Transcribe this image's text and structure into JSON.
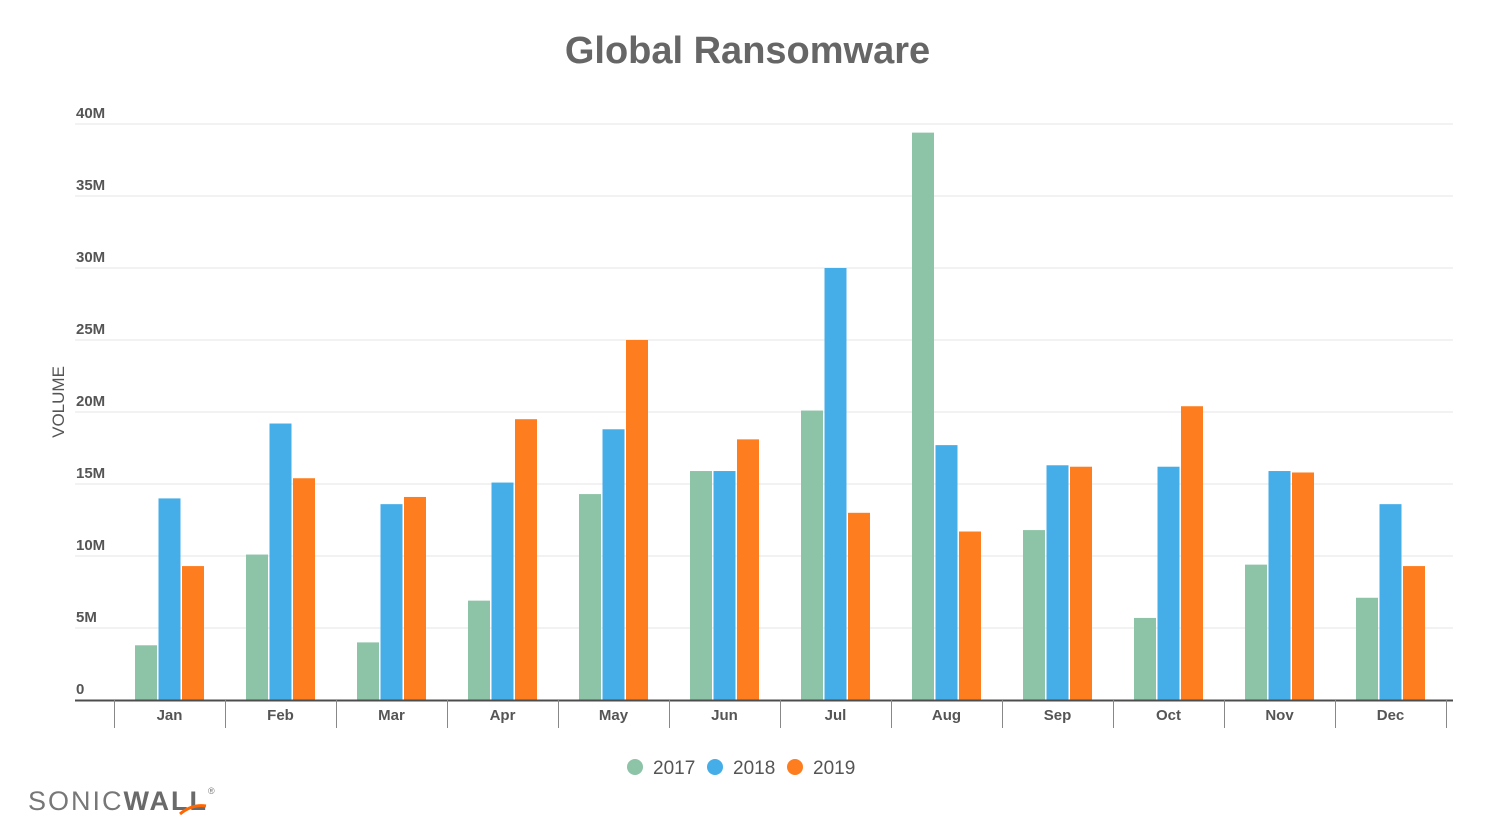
{
  "chart_data": {
    "type": "bar",
    "title": "Global Ransomware",
    "xlabel": "",
    "ylabel": "VOLUME",
    "ylim": [
      0,
      40000000
    ],
    "y_ticks": [
      {
        "value": 0,
        "label": "0"
      },
      {
        "value": 5000000,
        "label": "5M"
      },
      {
        "value": 10000000,
        "label": "10M"
      },
      {
        "value": 15000000,
        "label": "15M"
      },
      {
        "value": 20000000,
        "label": "20M"
      },
      {
        "value": 25000000,
        "label": "25M"
      },
      {
        "value": 30000000,
        "label": "30M"
      },
      {
        "value": 35000000,
        "label": "35M"
      },
      {
        "value": 40000000,
        "label": "40M"
      }
    ],
    "grid": true,
    "legend_position": "bottom-center",
    "categories": [
      "Jan",
      "Feb",
      "Mar",
      "Apr",
      "May",
      "Jun",
      "Jul",
      "Aug",
      "Sep",
      "Oct",
      "Nov",
      "Dec"
    ],
    "series": [
      {
        "name": "2017",
        "color": "#8dc3a7",
        "values": [
          3800000,
          10100000,
          4000000,
          6900000,
          14300000,
          15900000,
          20100000,
          39400000,
          11800000,
          5700000,
          9400000,
          7100000
        ]
      },
      {
        "name": "2018",
        "color": "#45aee8",
        "values": [
          14000000,
          19200000,
          13600000,
          15100000,
          18800000,
          15900000,
          30000000,
          17700000,
          16300000,
          16200000,
          15900000,
          13600000
        ]
      },
      {
        "name": "2019",
        "color": "#fe7d1f",
        "values": [
          9300000,
          15400000,
          14100000,
          19500000,
          25000000,
          18100000,
          13000000,
          11700000,
          16200000,
          20400000,
          15800000,
          9300000
        ]
      }
    ]
  },
  "brand": {
    "left": "SONIC",
    "right": "WALL",
    "mark": "®",
    "logo_color": "#ff6600"
  },
  "colors": {
    "title": "#666666",
    "axis_text": "#555555",
    "grid": "#e6e6e6",
    "axis": "#4d4d4d"
  }
}
